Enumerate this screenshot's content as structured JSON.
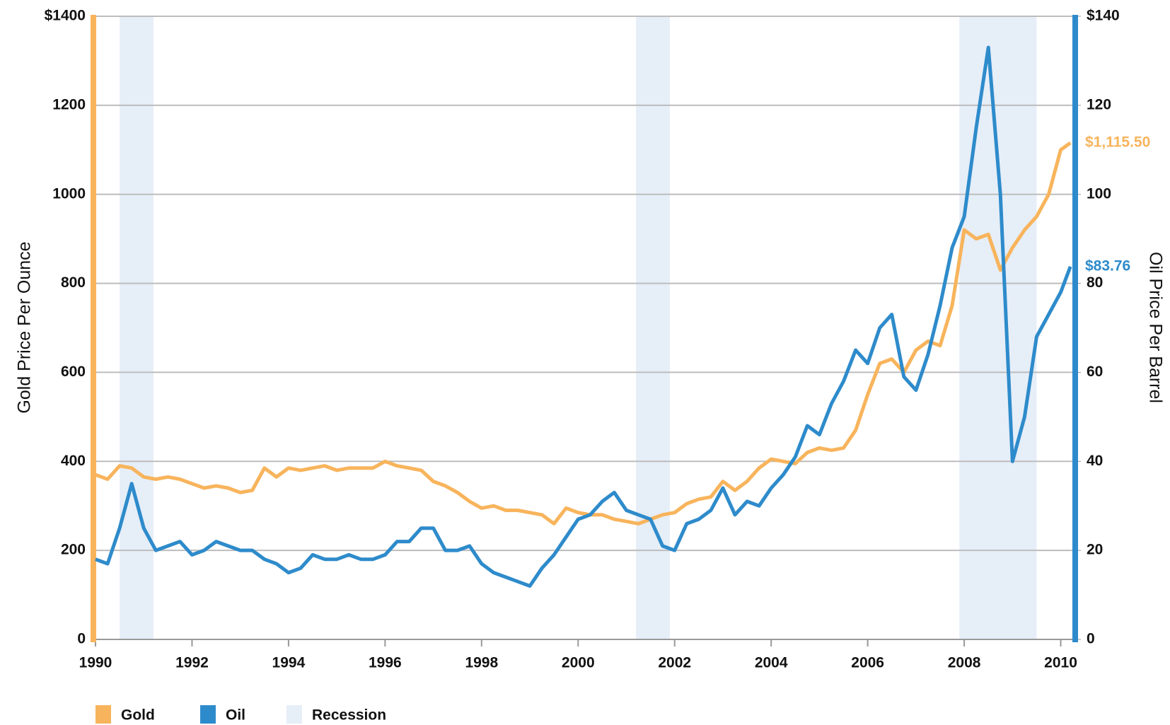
{
  "chart_data": {
    "type": "line",
    "x": [
      1990,
      1990.25,
      1990.5,
      1990.75,
      1991,
      1991.25,
      1991.5,
      1991.75,
      1992,
      1992.25,
      1992.5,
      1992.75,
      1993,
      1993.25,
      1993.5,
      1993.75,
      1994,
      1994.25,
      1994.5,
      1994.75,
      1995,
      1995.25,
      1995.5,
      1995.75,
      1996,
      1996.25,
      1996.5,
      1996.75,
      1997,
      1997.25,
      1997.5,
      1997.75,
      1998,
      1998.25,
      1998.5,
      1998.75,
      1999,
      1999.25,
      1999.5,
      1999.75,
      2000,
      2000.25,
      2000.5,
      2000.75,
      2001,
      2001.25,
      2001.5,
      2001.75,
      2002,
      2002.25,
      2002.5,
      2002.75,
      2003,
      2003.25,
      2003.5,
      2003.75,
      2004,
      2004.25,
      2004.5,
      2004.75,
      2005,
      2005.25,
      2005.5,
      2005.75,
      2006,
      2006.25,
      2006.5,
      2006.75,
      2007,
      2007.25,
      2007.5,
      2007.75,
      2008,
      2008.25,
      2008.5,
      2008.75,
      2009,
      2009.25,
      2009.5,
      2009.75,
      2010,
      2010.2
    ],
    "series": [
      {
        "name": "Gold",
        "color": "#f8b45c",
        "axis": "y",
        "last_label": "$1,115.50",
        "values": [
          370,
          360,
          390,
          385,
          365,
          360,
          365,
          360,
          350,
          340,
          345,
          340,
          330,
          335,
          385,
          365,
          385,
          380,
          385,
          390,
          380,
          385,
          385,
          385,
          400,
          390,
          385,
          380,
          355,
          345,
          330,
          310,
          295,
          300,
          290,
          290,
          285,
          280,
          260,
          295,
          285,
          280,
          280,
          270,
          265,
          260,
          270,
          280,
          285,
          305,
          315,
          320,
          355,
          335,
          355,
          385,
          405,
          400,
          395,
          420,
          430,
          425,
          430,
          470,
          550,
          620,
          630,
          600,
          650,
          670,
          660,
          750,
          920,
          900,
          910,
          830,
          880,
          920,
          950,
          1000,
          1100,
          1115.5
        ]
      },
      {
        "name": "Oil",
        "color": "#2e8bcb",
        "axis": "y2",
        "last_label": "$83.76",
        "values": [
          18,
          17,
          25,
          35,
          25,
          20,
          21,
          22,
          19,
          20,
          22,
          21,
          20,
          20,
          18,
          17,
          15,
          16,
          19,
          18,
          18,
          19,
          18,
          18,
          19,
          22,
          22,
          25,
          25,
          20,
          20,
          21,
          17,
          15,
          14,
          13,
          12,
          16,
          19,
          23,
          27,
          28,
          31,
          33,
          29,
          28,
          27,
          21,
          20,
          26,
          27,
          29,
          34,
          28,
          31,
          30,
          34,
          37,
          41,
          48,
          46,
          53,
          58,
          65,
          62,
          70,
          73,
          59,
          56,
          64,
          75,
          88,
          95,
          115,
          133,
          100,
          40,
          50,
          68,
          73,
          78,
          83.76
        ]
      }
    ],
    "recession_name": "Recession",
    "recession_color": "#e6eef8",
    "recessions": [
      {
        "start": 1990.5,
        "end": 1991.2
      },
      {
        "start": 2001.2,
        "end": 2001.9
      },
      {
        "start": 2007.9,
        "end": 2009.5
      }
    ],
    "xlim": [
      1990,
      2010.3
    ],
    "xticks": [
      1990,
      1992,
      1994,
      1996,
      1998,
      2000,
      2002,
      2004,
      2006,
      2008,
      2010
    ],
    "ylim": [
      0,
      1400
    ],
    "yticks": [
      0,
      200,
      400,
      600,
      800,
      1000,
      1200,
      {
        "value": 1400,
        "label": "$1400"
      }
    ],
    "y2lim": [
      0,
      140
    ],
    "y2ticks": [
      0,
      20,
      40,
      60,
      80,
      100,
      120,
      {
        "value": 140,
        "label": "$140"
      }
    ],
    "ylabel": "Gold Price Per Ounce",
    "y2label": "Oil Price Per Barrel",
    "grid": true
  }
}
